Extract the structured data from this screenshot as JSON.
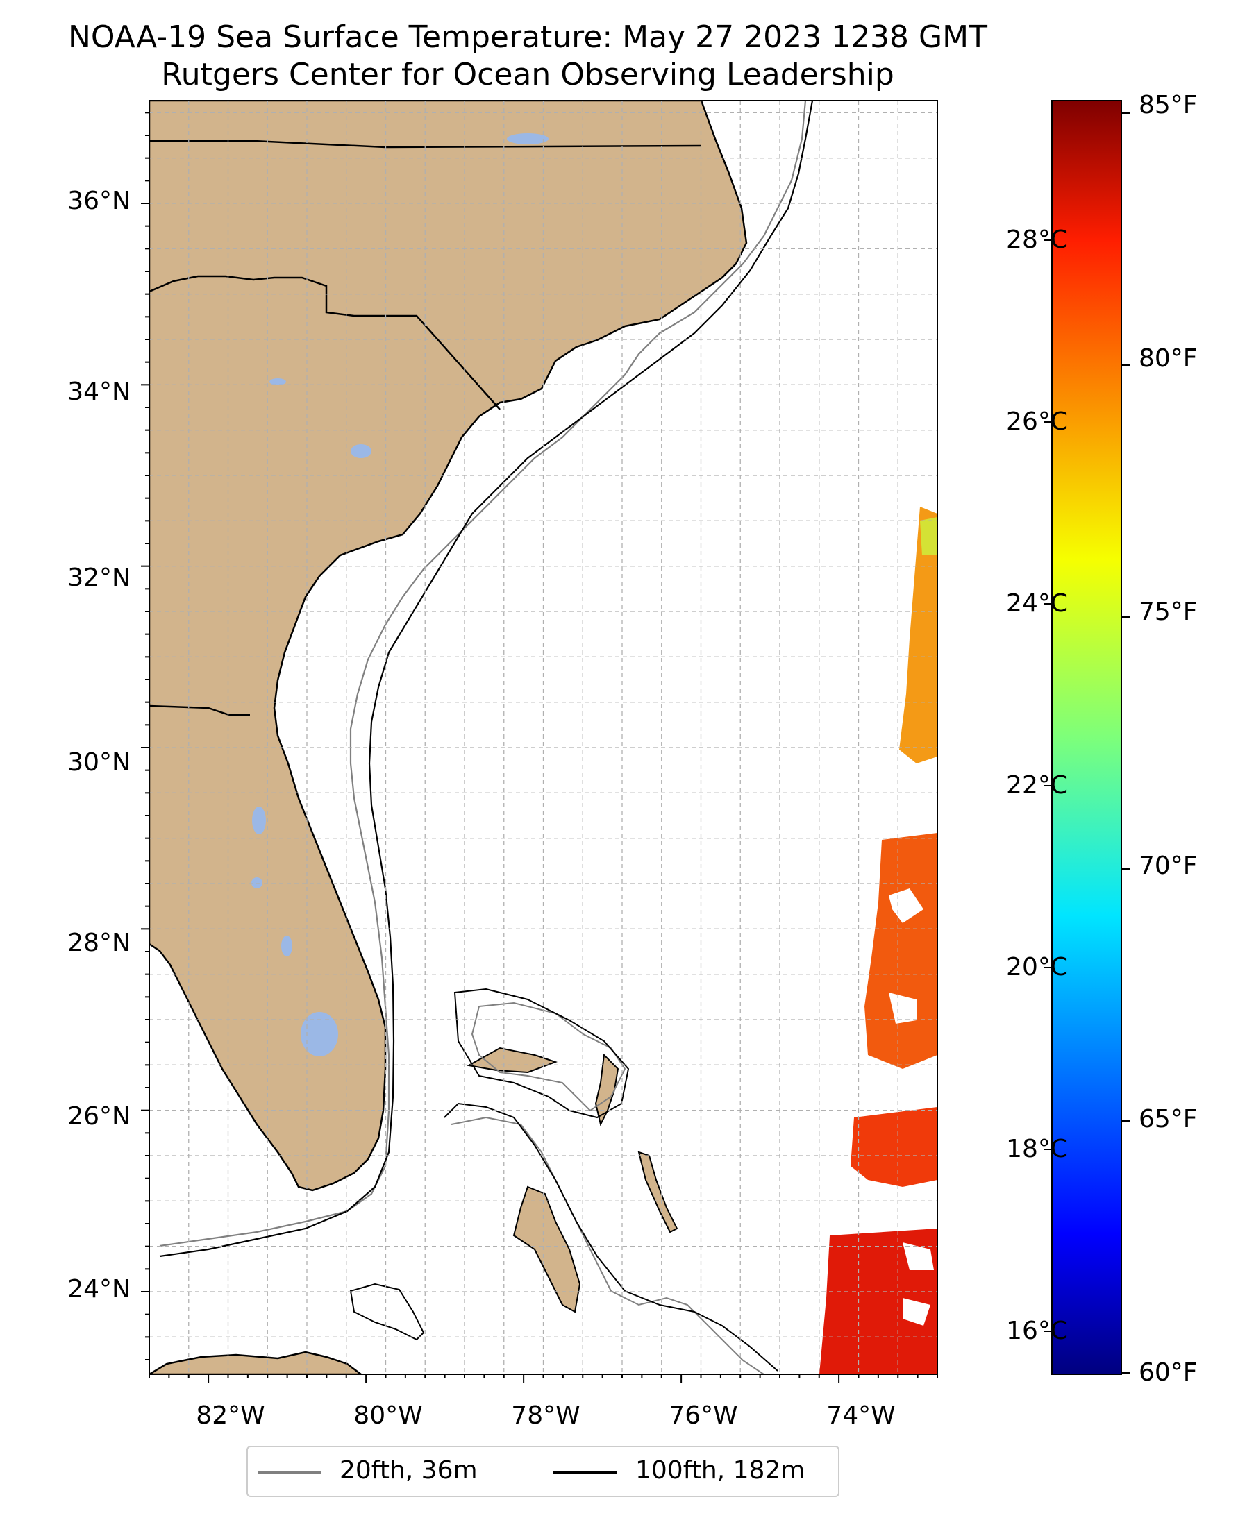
{
  "title": "NOAA-19 Sea Surface Temperature: May 27 2023 1238 GMT",
  "subtitle": "Rutgers Center for Ocean Observing Leadership",
  "map": {
    "lon_range": [
      -83.0,
      -73.0
    ],
    "lat_range": [
      23.0,
      37.0
    ],
    "land_color": "#d2b48c",
    "water_body_color": "#9bb8e6",
    "gridlines": "dashed",
    "lon_ticks": [
      "82°W",
      "80°W",
      "78°W",
      "76°W",
      "74°W"
    ],
    "lat_ticks": [
      "24°N",
      "26°N",
      "28°N",
      "30°N",
      "32°N",
      "34°N",
      "36°N"
    ]
  },
  "colorbar": {
    "colormap": "jet",
    "celsius_ticks": [
      "16°C",
      "18°C",
      "20°C",
      "22°C",
      "24°C",
      "26°C",
      "28°C"
    ],
    "fahrenheit_ticks": [
      "60°F",
      "65°F",
      "70°F",
      "75°F",
      "80°F",
      "85°F"
    ],
    "f_min": 60,
    "f_max": 85
  },
  "legend": [
    {
      "label": "20fth, 36m",
      "color": "#808080"
    },
    {
      "label": "100fth, 182m",
      "color": "#000000"
    }
  ]
}
